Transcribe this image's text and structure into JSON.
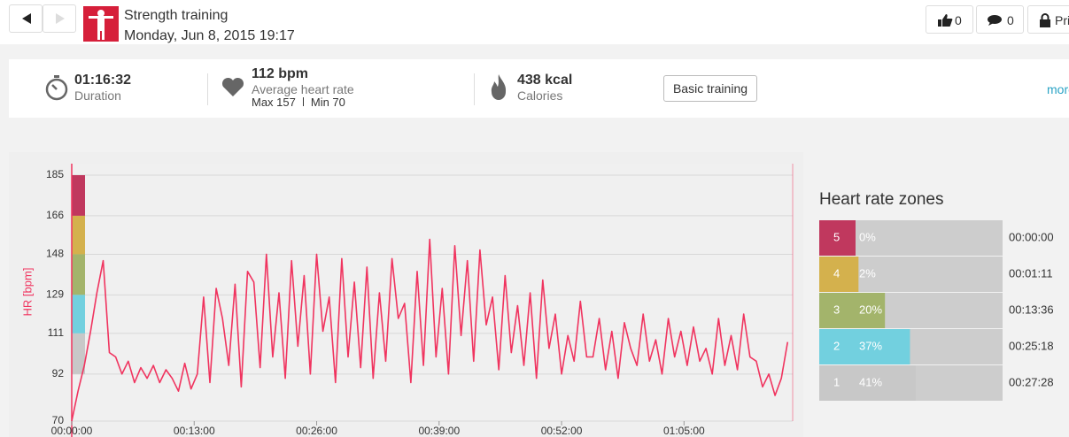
{
  "header": {
    "title": "Strength training",
    "date": "Monday, Jun 8, 2015 19:17",
    "likes": "0",
    "comments": "0",
    "privacy": "Private"
  },
  "stats": {
    "duration": "01:16:32",
    "duration_label": "Duration",
    "avg_hr": "112 bpm",
    "avg_hr_label": "Average heart rate",
    "max": "Max 157",
    "min": "Min 70",
    "calories": "438 kcal",
    "calories_label": "Calories",
    "button": "Basic training",
    "more": "more"
  },
  "chart_data": {
    "type": "line",
    "y_label": "HR [bpm]",
    "color": "#f0345f",
    "grid": true,
    "xlim": [
      0,
      4592
    ],
    "ylim": [
      70,
      185
    ],
    "xticks": [
      {
        "value": 0,
        "label": "00:00:00"
      },
      {
        "value": 780,
        "label": "00:13:00"
      },
      {
        "value": 1560,
        "label": "00:26:00"
      },
      {
        "value": 2340,
        "label": "00:39:00"
      },
      {
        "value": 3120,
        "label": "00:52:00"
      },
      {
        "value": 3900,
        "label": "01:05:00"
      }
    ],
    "yticks": [
      70,
      92,
      111,
      129,
      148,
      166,
      185
    ],
    "x": [
      0,
      40,
      80,
      120,
      160,
      200,
      240,
      280,
      320,
      360,
      400,
      440,
      480,
      520,
      560,
      600,
      640,
      680,
      720,
      760,
      800,
      840,
      880,
      920,
      960,
      1000,
      1040,
      1080,
      1120,
      1160,
      1200,
      1240,
      1280,
      1320,
      1360,
      1400,
      1440,
      1480,
      1520,
      1560,
      1600,
      1640,
      1680,
      1720,
      1760,
      1800,
      1840,
      1880,
      1920,
      1960,
      2000,
      2040,
      2080,
      2120,
      2160,
      2200,
      2240,
      2280,
      2320,
      2360,
      2400,
      2440,
      2480,
      2520,
      2560,
      2600,
      2640,
      2680,
      2720,
      2760,
      2800,
      2840,
      2880,
      2920,
      2960,
      3000,
      3040,
      3080,
      3120,
      3160,
      3200,
      3240,
      3280,
      3320,
      3360,
      3400,
      3440,
      3480,
      3520,
      3560,
      3600,
      3640,
      3680,
      3720,
      3760,
      3800,
      3840,
      3880,
      3920,
      3960,
      4000,
      4040,
      4080,
      4120,
      4160,
      4200,
      4240,
      4280,
      4320,
      4360,
      4400,
      4440,
      4480,
      4520,
      4560
    ],
    "values": [
      70,
      84,
      96,
      112,
      130,
      145,
      102,
      100,
      92,
      98,
      88,
      95,
      90,
      96,
      88,
      94,
      90,
      84,
      97,
      85,
      92,
      128,
      88,
      132,
      118,
      96,
      134,
      86,
      140,
      135,
      95,
      148,
      100,
      130,
      90,
      145,
      105,
      138,
      92,
      148,
      112,
      128,
      88,
      146,
      100,
      135,
      95,
      142,
      90,
      130,
      98,
      146,
      118,
      125,
      88,
      140,
      96,
      155,
      100,
      132,
      92,
      152,
      110,
      145,
      98,
      150,
      115,
      128,
      94,
      138,
      102,
      124,
      96,
      130,
      90,
      136,
      104,
      120,
      92,
      110,
      98,
      126,
      100,
      100,
      118,
      94,
      112,
      90,
      116,
      104,
      96,
      120,
      98,
      108,
      92,
      118,
      100,
      112,
      96,
      114,
      98,
      104,
      92,
      118,
      96,
      110,
      94,
      120,
      100,
      98,
      86,
      92,
      82,
      90,
      107
    ]
  },
  "zones": {
    "title": "Heart rate zones",
    "numbers": [
      5,
      4,
      3,
      2,
      1
    ],
    "percents": [
      0,
      2,
      20,
      37,
      41
    ],
    "percent_labels": [
      "0%",
      "2%",
      "20%",
      "37%",
      "41%"
    ],
    "times": [
      "00:00:00",
      "00:01:11",
      "00:13:36",
      "00:25:18",
      "00:27:28"
    ],
    "colors": [
      "#c0385e",
      "#d4b14d",
      "#a3b46b",
      "#72d0df",
      "#c8c8c8"
    ]
  }
}
